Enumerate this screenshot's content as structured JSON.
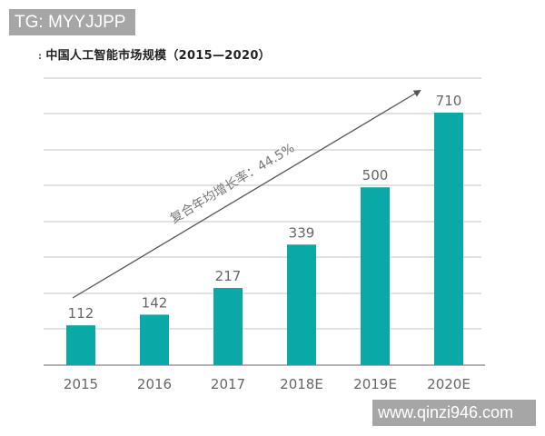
{
  "watermarks": {
    "top": "TG: MYYJJPP",
    "bottom": "www.qinzi946.com"
  },
  "title": {
    "lead": ":",
    "text": "中国人工智能市场规模（2015—2020）"
  },
  "annotation": {
    "text": "复合年均增长率：44.5%"
  },
  "colors": {
    "bar": "#0aa8a6",
    "grid": "#d9d9d9",
    "axis": "#9a9a9a",
    "label": "#666666",
    "arrow": "#555555"
  },
  "chart_data": {
    "type": "bar",
    "title": "中国人工智能市场规模（2015—2020）",
    "categories": [
      "2015",
      "2016",
      "2017",
      "2018E",
      "2019E",
      "2020E"
    ],
    "values": [
      112,
      142,
      217,
      339,
      500,
      710
    ],
    "xlabel": "",
    "ylabel": "",
    "ylim": [
      0,
      800
    ],
    "grid": true,
    "legend": null,
    "data_labels": true,
    "annotations": [
      {
        "type": "arrow",
        "text": "复合年均增长率：44.5%",
        "from": "2015",
        "to": "2020E"
      }
    ]
  }
}
